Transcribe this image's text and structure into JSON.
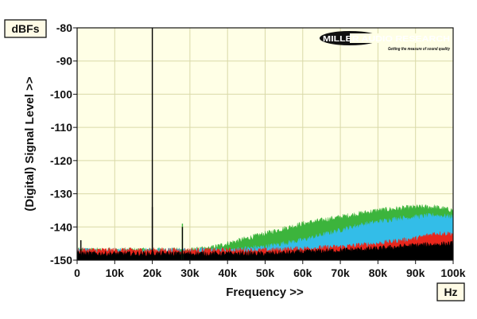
{
  "chart_data": {
    "type": "line",
    "y_unit": "dBFs",
    "x_unit": "Hz",
    "xlabel": "Frequency >>",
    "ylabel": "(Digital) Signal Level >>",
    "xlim": [
      0,
      100000
    ],
    "ylim": [
      -150,
      -80
    ],
    "x_ticks": [
      0,
      10000,
      20000,
      30000,
      40000,
      50000,
      60000,
      70000,
      80000,
      90000,
      100000
    ],
    "x_tick_labels": [
      "0",
      "10k",
      "20k",
      "30k",
      "40k",
      "50k",
      "60k",
      "70k",
      "80k",
      "90k",
      "100k"
    ],
    "y_ticks": [
      -80,
      -90,
      -100,
      -110,
      -120,
      -130,
      -140,
      -150
    ],
    "y_tick_labels": [
      "-80",
      "-90",
      "-100",
      "-110",
      "-120",
      "-130",
      "-140",
      "-150"
    ],
    "grid": true,
    "colors": {
      "plot_bg": "#ffffe6",
      "grid": "#d9d9a8",
      "green": "#3cb43c",
      "cyan": "#33bde8",
      "red": "#e8261c",
      "black": "#000000"
    },
    "series": [
      {
        "color": "green",
        "x": [
          0,
          10000,
          20000,
          30000,
          35000,
          40000,
          45000,
          50000,
          55000,
          60000,
          65000,
          70000,
          75000,
          80000,
          85000,
          90000,
          95000,
          100000
        ],
        "values": [
          -147,
          -147,
          -147,
          -147,
          -146.5,
          -145,
          -143.5,
          -142,
          -140.5,
          -139,
          -138,
          -137,
          -136,
          -135,
          -134.5,
          -134,
          -134,
          -135
        ]
      },
      {
        "color": "cyan",
        "x": [
          0,
          10000,
          20000,
          30000,
          40000,
          50000,
          55000,
          60000,
          65000,
          70000,
          75000,
          80000,
          85000,
          90000,
          95000,
          100000
        ],
        "values": [
          -147,
          -147,
          -147,
          -147,
          -147,
          -146,
          -145,
          -144,
          -142.5,
          -141,
          -139.5,
          -138.5,
          -137.5,
          -137,
          -136.5,
          -137
        ]
      },
      {
        "color": "red",
        "x": [
          0,
          10000,
          20000,
          30000,
          40000,
          50000,
          60000,
          70000,
          80000,
          90000,
          95000,
          100000
        ],
        "values": [
          -147,
          -147,
          -147,
          -147,
          -147,
          -147,
          -146.5,
          -146,
          -145,
          -143.5,
          -142,
          -142
        ]
      },
      {
        "color": "black",
        "x": [
          0,
          10000,
          20000,
          30000,
          40000,
          50000,
          60000,
          70000,
          80000,
          90000,
          100000
        ],
        "values": [
          -148,
          -148,
          -148,
          -148,
          -148,
          -148,
          -147.5,
          -147,
          -146.5,
          -145.5,
          -145
        ]
      }
    ],
    "spikes": [
      {
        "x": 1000,
        "top": -144,
        "color": "black"
      },
      {
        "x": 20000,
        "top": -80,
        "color": "black"
      },
      {
        "x": 20000,
        "top": -134,
        "color": "black"
      },
      {
        "x": 28000,
        "top": -139,
        "color": "green"
      },
      {
        "x": 28000,
        "top": -140,
        "color": "black"
      }
    ]
  },
  "logo": {
    "brand": "MILLER AUDIO RESEARCH",
    "tagline": "Getting the measure of sound quality"
  }
}
